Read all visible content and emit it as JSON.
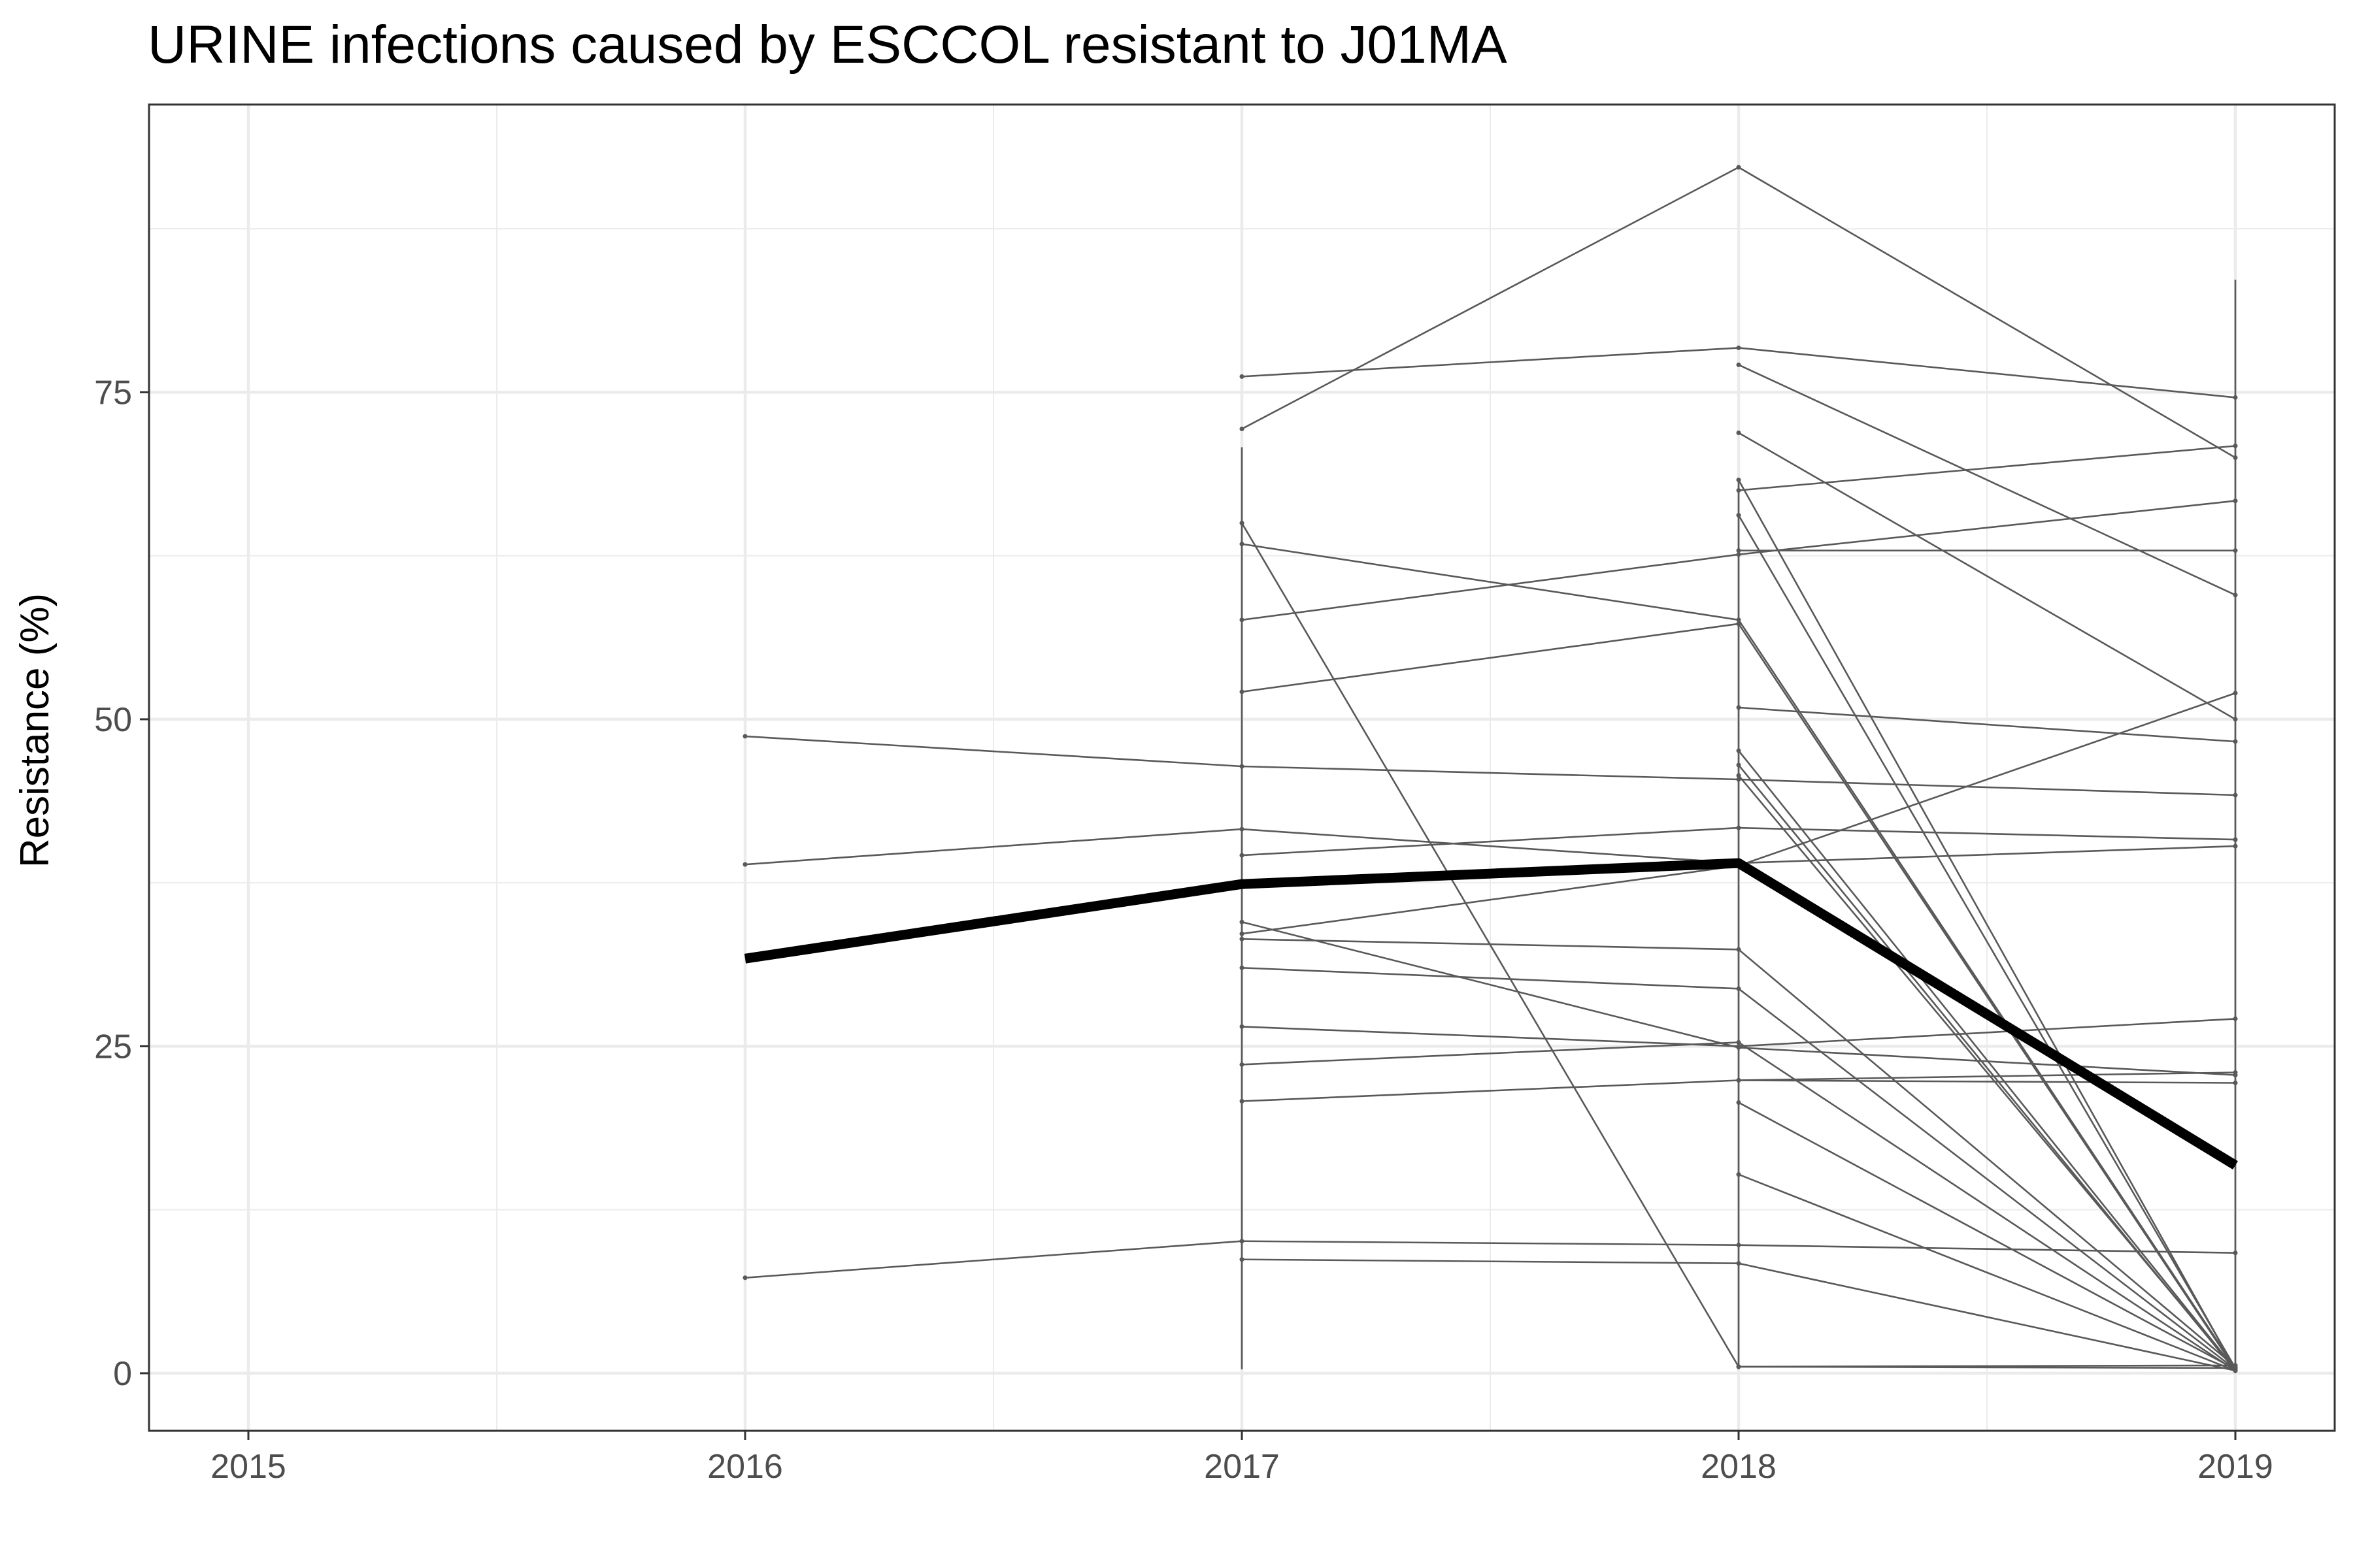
{
  "chart_data": {
    "type": "line",
    "title": "URINE infections caused by ESCCOL resistant to J01MA",
    "xlabel": "",
    "ylabel": "Resistance (%)",
    "x_ticks": [
      "2015",
      "2016",
      "2017",
      "2018",
      "2019"
    ],
    "y_ticks": [
      0,
      25,
      50,
      75
    ],
    "xlim": [
      2014.8,
      2019.2
    ],
    "ylim": [
      -4.4,
      97
    ],
    "grid": true,
    "series": [
      {
        "role": "overall",
        "x": [
          2016,
          2017,
          2018,
          2019
        ],
        "y": [
          31.7,
          37.4,
          39.0,
          15.9
        ]
      },
      {
        "x": [
          2016,
          2017,
          2018,
          2019
        ],
        "y": [
          48.7,
          46.4,
          45.4,
          44.2
        ]
      },
      {
        "x": [
          2016,
          2017,
          2018,
          2019
        ],
        "y": [
          38.9,
          41.6,
          39.0,
          40.3
        ]
      },
      {
        "x": [
          2016,
          2017,
          2018,
          2019
        ],
        "y": [
          7.3,
          10.1,
          9.8,
          9.2
        ]
      },
      {
        "x": [
          2017,
          2018,
          2019
        ],
        "y": [
          72.2,
          92.2,
          70.0
        ]
      },
      {
        "x": [
          2017,
          2018,
          2019
        ],
        "y": [
          76.2,
          78.4,
          74.6
        ]
      },
      {
        "x": [
          2017,
          2018,
          2019
        ],
        "y": [
          65.0,
          0.5,
          0.4
        ]
      },
      {
        "x": [
          2017,
          2018,
          2019
        ],
        "y": [
          63.4,
          57.6,
          0.4
        ]
      },
      {
        "x": [
          2017,
          2018,
          2019
        ],
        "y": [
          57.6,
          62.6,
          66.7
        ]
      },
      {
        "x": [
          2017,
          2018,
          2019
        ],
        "y": [
          52.1,
          57.3,
          0.3
        ]
      },
      {
        "x": [
          2017,
          2018,
          2019
        ],
        "y": [
          39.6,
          41.7,
          40.8
        ]
      },
      {
        "x": [
          2017,
          2018,
          2019
        ],
        "y": [
          34.5,
          24.9,
          22.8
        ]
      },
      {
        "x": [
          2017,
          2018,
          2019
        ],
        "y": [
          33.6,
          38.8,
          52.0
        ]
      },
      {
        "x": [
          2017,
          2018,
          2019
        ],
        "y": [
          33.2,
          32.4,
          0.5
        ]
      },
      {
        "x": [
          2017,
          2018,
          2019
        ],
        "y": [
          31.0,
          29.4,
          0.3
        ]
      },
      {
        "x": [
          2017,
          2018,
          2019
        ],
        "y": [
          26.5,
          25.0,
          27.1
        ]
      },
      {
        "x": [
          2017,
          2018,
          2019
        ],
        "y": [
          23.6,
          25.3,
          0.2
        ]
      },
      {
        "x": [
          2017,
          2018,
          2019
        ],
        "y": [
          20.8,
          22.4,
          23.0
        ]
      },
      {
        "x": [
          2017,
          2018,
          2019
        ],
        "y": [
          8.7,
          8.4,
          0.2
        ]
      },
      {
        "x": [
          2018,
          2019
        ],
        "y": [
          77.1,
          59.5
        ]
      },
      {
        "x": [
          2018,
          2019
        ],
        "y": [
          71.9,
          50.0
        ]
      },
      {
        "x": [
          2018,
          2019
        ],
        "y": [
          67.5,
          70.9
        ]
      },
      {
        "x": [
          2018,
          2019
        ],
        "y": [
          68.3,
          0.3
        ]
      },
      {
        "x": [
          2018,
          2019
        ],
        "y": [
          65.6,
          0.4
        ]
      },
      {
        "x": [
          2018,
          2019
        ],
        "y": [
          62.9,
          62.9
        ]
      },
      {
        "x": [
          2018,
          2019
        ],
        "y": [
          50.9,
          48.3
        ]
      },
      {
        "x": [
          2018,
          2019
        ],
        "y": [
          47.6,
          0.3
        ]
      },
      {
        "x": [
          2018,
          2019
        ],
        "y": [
          46.5,
          0.2
        ]
      },
      {
        "x": [
          2018,
          2019
        ],
        "y": [
          45.7,
          0.3
        ]
      },
      {
        "x": [
          2018,
          2019
        ],
        "y": [
          22.4,
          22.2
        ]
      },
      {
        "x": [
          2018,
          2019
        ],
        "y": [
          20.7,
          0.3
        ]
      },
      {
        "x": [
          2018,
          2019
        ],
        "y": [
          15.2,
          0.2
        ]
      },
      {
        "x": [
          2018,
          2019
        ],
        "y": [
          0.5,
          0.6
        ]
      }
    ],
    "vertical_segments": [
      {
        "x": 2017,
        "y": [
          0.3,
          70.8
        ]
      },
      {
        "x": 2018,
        "y": [
          0.3,
          68.4
        ]
      },
      {
        "x": 2019,
        "y": [
          0.0,
          83.6
        ]
      }
    ],
    "colors": {
      "overall": "#000000",
      "other": "#595959",
      "grid": "#ebebeb",
      "panel_border": "#333333"
    }
  }
}
